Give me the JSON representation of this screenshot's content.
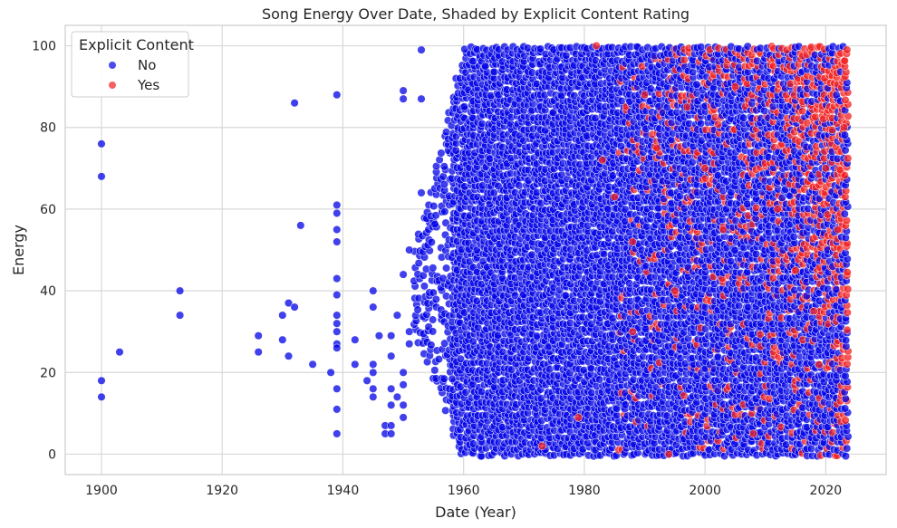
{
  "chart_data": {
    "type": "scatter",
    "title": "Song Energy Over Date, Shaded by Explicit Content Rating",
    "xlabel": "Date (Year)",
    "ylabel": "Energy",
    "xlim": [
      1894,
      2030
    ],
    "ylim": [
      -5,
      105
    ],
    "x_ticks": [
      1900,
      1920,
      1940,
      1960,
      1980,
      2000,
      2020
    ],
    "y_ticks": [
      0,
      20,
      40,
      60,
      80,
      100
    ],
    "grid": true,
    "legend": {
      "title": "Explicit Content",
      "placement": "top-left",
      "entries": [
        {
          "label": "No",
          "color": "#0000e6"
        },
        {
          "label": "Yes",
          "color": "#f21d1d"
        }
      ]
    },
    "series": [
      {
        "name": "No",
        "color": "#0000e6",
        "sample_points": [
          [
            1900,
            76
          ],
          [
            1900,
            68
          ],
          [
            1900,
            18
          ],
          [
            1900,
            14
          ],
          [
            1903,
            25
          ],
          [
            1913,
            40
          ],
          [
            1913,
            34
          ],
          [
            1926,
            29
          ],
          [
            1926,
            25
          ],
          [
            1930,
            34
          ],
          [
            1930,
            28
          ],
          [
            1931,
            37
          ],
          [
            1931,
            24
          ],
          [
            1932,
            86
          ],
          [
            1932,
            36
          ],
          [
            1933,
            56
          ],
          [
            1935,
            22
          ],
          [
            1938,
            20
          ],
          [
            1939,
            88
          ],
          [
            1939,
            61
          ],
          [
            1939,
            59
          ],
          [
            1939,
            55
          ],
          [
            1939,
            52
          ],
          [
            1939,
            43
          ],
          [
            1939,
            39
          ],
          [
            1939,
            34
          ],
          [
            1939,
            32
          ],
          [
            1939,
            30
          ],
          [
            1939,
            27
          ],
          [
            1939,
            26
          ],
          [
            1939,
            16
          ],
          [
            1939,
            11
          ],
          [
            1939,
            5
          ],
          [
            1942,
            28
          ],
          [
            1942,
            22
          ],
          [
            1944,
            18
          ],
          [
            1945,
            40
          ],
          [
            1945,
            36
          ],
          [
            1945,
            22
          ],
          [
            1945,
            20
          ],
          [
            1945,
            16
          ],
          [
            1945,
            14
          ],
          [
            1946,
            29
          ],
          [
            1947,
            7
          ],
          [
            1947,
            5
          ],
          [
            1948,
            29
          ],
          [
            1948,
            24
          ],
          [
            1948,
            16
          ],
          [
            1948,
            12
          ],
          [
            1948,
            7
          ],
          [
            1948,
            5
          ],
          [
            1949,
            34
          ],
          [
            1949,
            14
          ],
          [
            1950,
            89
          ],
          [
            1950,
            87
          ],
          [
            1950,
            44
          ],
          [
            1950,
            20
          ],
          [
            1950,
            17
          ],
          [
            1950,
            12
          ],
          [
            1950,
            9
          ],
          [
            1951,
            50
          ],
          [
            1951,
            30
          ],
          [
            1951,
            27
          ],
          [
            1953,
            99
          ],
          [
            1953,
            87
          ],
          [
            1953,
            64
          ]
        ]
      },
      {
        "name": "Yes",
        "color": "#f21d1d",
        "sample_points": [
          [
            1973,
            2
          ],
          [
            1979,
            9
          ],
          [
            1982,
            100
          ],
          [
            1983,
            72
          ],
          [
            1985,
            63
          ],
          [
            1988,
            52
          ],
          [
            1988,
            30
          ],
          [
            1990,
            88
          ],
          [
            1992,
            75
          ],
          [
            1994,
            0
          ],
          [
            1995,
            40
          ],
          [
            1997,
            85
          ],
          [
            2000,
            70
          ],
          [
            2003,
            55
          ],
          [
            2005,
            90
          ],
          [
            2008,
            5
          ],
          [
            2012,
            60
          ],
          [
            2015,
            45
          ],
          [
            2018,
            35
          ],
          [
            2020,
            70
          ],
          [
            2022,
            55
          ],
          [
            2023,
            80
          ]
        ]
      }
    ]
  }
}
